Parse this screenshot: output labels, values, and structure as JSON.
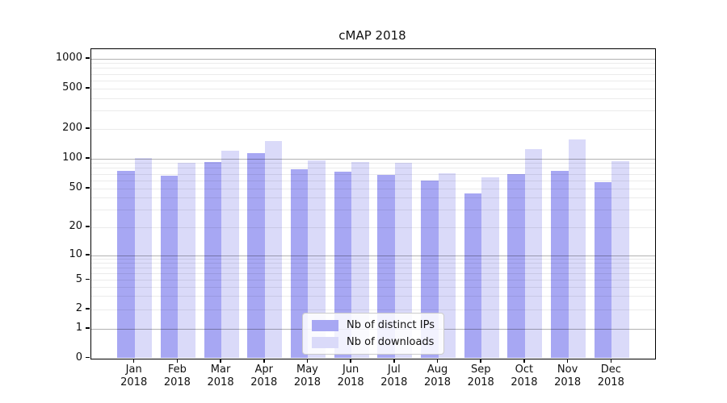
{
  "figure": {
    "title": "cMAP 2018"
  },
  "chart_data": {
    "type": "bar",
    "title": "cMAP 2018",
    "categories": [
      "Jan",
      "Feb",
      "Mar",
      "Apr",
      "May",
      "Jun",
      "Jul",
      "Aug",
      "Sep",
      "Oct",
      "Nov",
      "Dec"
    ],
    "category_year": "2018",
    "series": [
      {
        "name": "Nb of distinct IPs",
        "color": "#a7a7f3",
        "values": [
          75,
          68,
          92,
          113,
          78,
          74,
          69,
          60,
          45,
          70,
          75,
          58
        ]
      },
      {
        "name": "Nb of downloads",
        "color": "#dadaf9",
        "values": [
          102,
          91,
          120,
          150,
          96,
          93,
          91,
          72,
          65,
          125,
          158,
          95
        ]
      }
    ],
    "yscale": "symlog",
    "ytick_labels": [
      0,
      1,
      2,
      5,
      10,
      20,
      50,
      100,
      200,
      500,
      1000
    ],
    "yminor_gridlines": [
      3,
      4,
      6,
      7,
      8,
      9,
      30,
      40,
      60,
      70,
      80,
      90,
      300,
      400,
      600,
      700,
      800,
      900
    ],
    "ylim": [
      0,
      1250
    ],
    "grid": true,
    "legend_position": "lower center",
    "colors": {
      "major_grid": "rgba(0,0,0,0.30)",
      "minor_grid": "rgba(0,0,0,0.08)",
      "spine": "#000000"
    }
  }
}
